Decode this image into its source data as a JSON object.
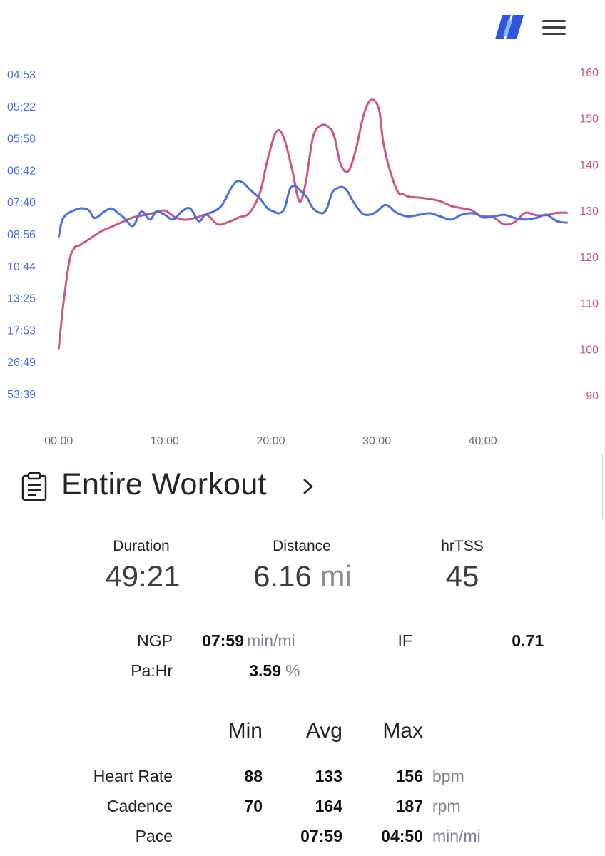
{
  "colors": {
    "pace": "#4a6fe0",
    "heart_rate": "#d0548a",
    "grid": "#e6e6e6",
    "logo": "#2f56e0"
  },
  "header": {
    "logo_icon": "brand-logo-icon",
    "menu_icon": "hamburger-menu-icon"
  },
  "chart_data": {
    "type": "line",
    "x_label": "",
    "x_ticks": [
      "00:00",
      "10:00",
      "20:00",
      "30:00",
      "40:00"
    ],
    "x_tick_values_min": [
      0,
      10,
      20,
      30,
      40
    ],
    "x_range_min": [
      -1.5,
      48.5
    ],
    "left_axis": {
      "series": "Pace",
      "unit": "min/mi",
      "ticks": [
        "04:53",
        "05:22",
        "05:58",
        "06:42",
        "07:40",
        "08:56",
        "10:44",
        "13:25",
        "17:53",
        "26:49",
        "53:39"
      ],
      "ratio": [
        0,
        1,
        2,
        3,
        4,
        5,
        6,
        7,
        8,
        9,
        10
      ]
    },
    "right_axis": {
      "series": "Heart Rate",
      "unit": "bpm",
      "ticks": [
        160,
        150,
        140,
        130,
        120,
        110,
        100,
        90
      ],
      "range": [
        90,
        160
      ]
    },
    "series": [
      {
        "name": "Heart Rate",
        "axis": "right",
        "x": [
          0,
          0.4,
          1.0,
          1.5,
          2,
          3,
          4,
          5,
          6,
          7,
          8,
          9,
          10,
          11,
          12,
          13,
          14,
          15,
          16,
          17,
          18,
          19,
          19.7,
          20.5,
          21.2,
          22,
          22.7,
          23.3,
          24,
          24.8,
          25.5,
          26,
          26.6,
          27.3,
          28,
          28.8,
          29.5,
          30.2,
          30.6,
          31.2,
          32,
          32.5,
          33,
          34,
          35,
          36,
          37,
          38,
          39,
          40,
          41,
          42,
          43,
          44,
          45,
          46,
          47,
          48
        ],
        "values": [
          100,
          109,
          119,
          122,
          122.5,
          124,
          125.5,
          126.5,
          127.5,
          128.5,
          129,
          129.5,
          130,
          128.5,
          128,
          128.5,
          129,
          127,
          127.5,
          128.5,
          129.5,
          134,
          141,
          147,
          146,
          139,
          132,
          136,
          146,
          148.5,
          148,
          146,
          140,
          138.5,
          143,
          151,
          154,
          152,
          145,
          139,
          134,
          133.5,
          133,
          132.8,
          132.5,
          132,
          131,
          130.5,
          130,
          128.5,
          128.5,
          127,
          127.5,
          129.5,
          129,
          129,
          129.5,
          129.5
        ]
      },
      {
        "name": "Pace",
        "axis": "left",
        "unit_note": "values are axis ratio (0 = 04:53 top, 10 = 53:39 bottom)",
        "x": [
          0,
          0.3,
          0.7,
          1.2,
          2,
          2.8,
          3.4,
          4.3,
          5,
          5.6,
          6.2,
          7,
          7.8,
          8.6,
          9.2,
          10,
          10.8,
          11.6,
          12.4,
          13.2,
          13.8,
          14.6,
          15.4,
          16.2,
          16.8,
          17.4,
          18,
          19,
          19.7,
          20.3,
          20.8,
          21.3,
          21.8,
          22.3,
          22.8,
          23.4,
          24,
          24.8,
          25.3,
          25.8,
          26.4,
          26.9,
          27.3,
          27.8,
          28.6,
          29.3,
          30,
          30.7,
          31.2,
          31.7,
          32.3,
          33,
          34,
          35,
          36,
          37,
          38,
          39,
          40,
          41,
          42,
          43,
          44,
          45,
          46,
          47,
          48
        ],
        "values": [
          5.1,
          4.6,
          4.4,
          4.3,
          4.2,
          4.25,
          4.5,
          4.3,
          4.2,
          4.35,
          4.5,
          4.75,
          4.3,
          4.55,
          4.3,
          4.4,
          4.55,
          4.3,
          4.2,
          4.6,
          4.4,
          4.3,
          4.1,
          3.6,
          3.35,
          3.4,
          3.6,
          3.9,
          4.2,
          4.3,
          4.35,
          4.2,
          3.6,
          3.5,
          3.65,
          3.85,
          4.2,
          4.35,
          4.2,
          3.7,
          3.55,
          3.55,
          3.7,
          4.0,
          4.35,
          4.4,
          4.3,
          4.1,
          4.15,
          4.3,
          4.4,
          4.45,
          4.4,
          4.35,
          4.45,
          4.55,
          4.4,
          4.35,
          4.45,
          4.45,
          4.4,
          4.5,
          4.55,
          4.5,
          4.4,
          4.6,
          4.65
        ]
      }
    ]
  },
  "section": {
    "icon": "clipboard-icon",
    "title": "Entire Workout",
    "chevron_icon": "chevron-right-icon"
  },
  "summary": {
    "duration": {
      "label": "Duration",
      "value": "49:21"
    },
    "distance": {
      "label": "Distance",
      "value": "6.16",
      "unit": "mi"
    },
    "hrtss": {
      "label": "hrTSS",
      "value": "45"
    }
  },
  "metrics": {
    "ngp": {
      "label": "NGP",
      "value": "07:59",
      "unit": "min/mi"
    },
    "if": {
      "label": "IF",
      "value": "0.71"
    },
    "pahr": {
      "label": "Pa:Hr",
      "value": "3.59",
      "unit": "%"
    }
  },
  "table": {
    "headers": {
      "min": "Min",
      "avg": "Avg",
      "max": "Max"
    },
    "rows": [
      {
        "label": "Heart Rate",
        "min": "88",
        "avg": "133",
        "max": "156",
        "unit": "bpm"
      },
      {
        "label": "Cadence",
        "min": "70",
        "avg": "164",
        "max": "187",
        "unit": "rpm"
      },
      {
        "label": "Pace",
        "min": "",
        "avg": "07:59",
        "max": "04:50",
        "unit": "min/mi"
      }
    ]
  }
}
